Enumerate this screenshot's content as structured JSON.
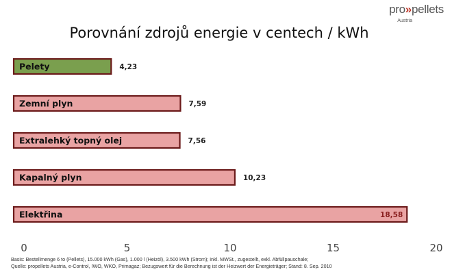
{
  "logo": {
    "brand_prefix": "pro",
    "brand_arrows": "»",
    "brand_suffix": "pellets",
    "sub": "Austria"
  },
  "title": "Porovnání zdrojů energie v centech / kWh",
  "footnotes": {
    "basis": "Basis: Bestellmenge 6 to (Pellets), 15.000 kWh (Gas), 1.000 l (Heizöl), 3.500 kWh (Strom); inkl. MWSt., zugestellt, exkl. Abfüllpauschale;",
    "source": "Quelle: propellets Austria, e-Control, IWO, WKO, Primagaz; Bezugswert für die Berechnung ist der Heizwert der Energieträger; Stand: 8. Sep. 2010"
  },
  "chart_data": {
    "type": "bar",
    "orientation": "horizontal",
    "categories": [
      "Pelety",
      "Zemní plyn",
      "Extralehký topný olej",
      "Kapalný plyn",
      "Elektřina"
    ],
    "values": [
      4.23,
      7.59,
      7.56,
      10.23,
      18.58
    ],
    "value_labels": [
      "4,23",
      "7,59",
      "7,56",
      "10,23",
      "18,58"
    ],
    "bar_colors": [
      "#7a9f4e",
      "#e9a3a3",
      "#e9a3a3",
      "#e9a3a3",
      "#e9a3a3"
    ],
    "border_color": "#6b1a1a",
    "xlim": [
      0,
      20
    ],
    "xticks": [
      0,
      5,
      10,
      15,
      20
    ],
    "xticklabels": [
      "0",
      "5",
      "10",
      "15",
      "20"
    ],
    "grid": false
  }
}
